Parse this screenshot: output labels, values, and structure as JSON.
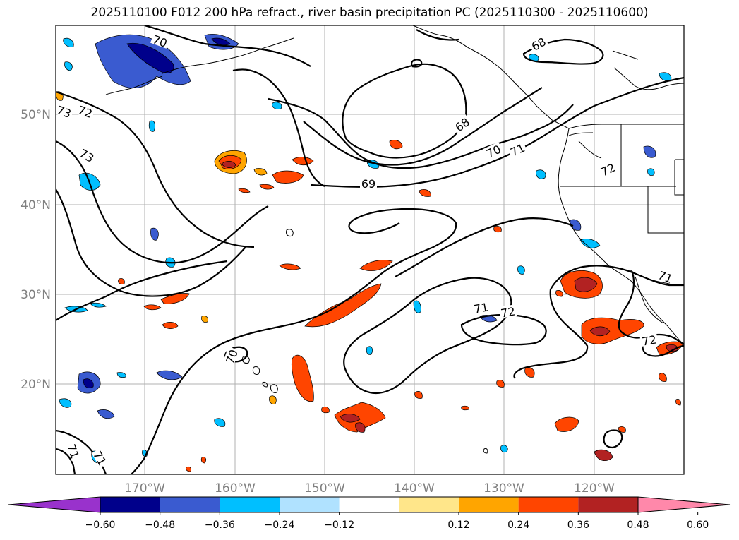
{
  "title": "2025110100 F012 200 hPa refract., river basin precipitation PC (2025110300 - 2025110600)",
  "map": {
    "lon_labels": [
      "170°W",
      "160°W",
      "150°W",
      "140°W",
      "130°W",
      "120°W"
    ],
    "lat_labels": [
      "50°N",
      "40°N",
      "30°N",
      "20°N"
    ],
    "contour_labels": [
      "70",
      "68",
      "73",
      "72",
      "73",
      "68",
      "70",
      "71",
      "72",
      "69",
      "71",
      "72",
      "71",
      "72",
      "71",
      "70",
      "71"
    ]
  },
  "colorbar": {
    "ticks": [
      "−0.60",
      "−0.48",
      "−0.36",
      "−0.24",
      "−0.12",
      "0.12",
      "0.24",
      "0.36",
      "0.48",
      "0.60"
    ],
    "colors": [
      "#9932cc",
      "#00008b",
      "#3a5bd0",
      "#00bfff",
      "#b0e2ff",
      "#ffffff",
      "#ffe68a",
      "#ffa500",
      "#ff4500",
      "#b22222",
      "#ff88aa"
    ]
  }
}
